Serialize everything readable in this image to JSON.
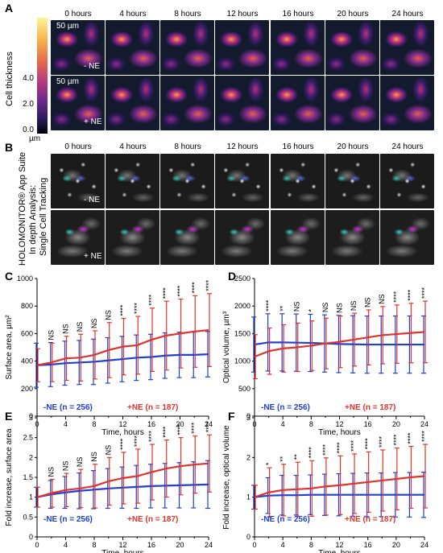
{
  "panels": {
    "A": {
      "letter": "A",
      "timepoints": [
        "0 hours",
        "4 hours",
        "8 hours",
        "12 hours",
        "16 hours",
        "20 hours",
        "24 hours"
      ],
      "ylabel": "Cell thickness",
      "colorbar_ticks": [
        "4.0",
        "2.0",
        "0.0"
      ],
      "colorbar_unit": "µm",
      "scale_label": "50 µm",
      "rows": [
        "- NE",
        "+ NE"
      ]
    },
    "B": {
      "letter": "B",
      "timepoints": [
        "0 hours",
        "4 hours",
        "8 hours",
        "12 hours",
        "16 hours",
        "20 hours",
        "24 hours"
      ],
      "ylabel_lines": [
        "HOLOMONITOR® App Suite",
        "In depth Analysis:",
        "Single Cell Tracking"
      ],
      "rows": [
        "- NE",
        "+ NE"
      ]
    }
  },
  "chart_data": [
    {
      "panel": "C",
      "type": "line",
      "xlabel": "Time, hours",
      "ylabel": "Surface area, µm²",
      "xlim": [
        0,
        24
      ],
      "ylim": [
        0,
        1000
      ],
      "xticks": [
        "0",
        "4",
        "8",
        "12",
        "16",
        "20",
        "24"
      ],
      "yticks": [
        "0",
        "200",
        "400",
        "600",
        "800",
        "1000"
      ],
      "x": [
        0,
        2,
        4,
        6,
        8,
        10,
        12,
        14,
        16,
        18,
        20,
        22,
        24
      ],
      "series": [
        {
          "name": "-NE (n = 256)",
          "color": "#1f3fd6",
          "values": [
            370,
            375,
            385,
            390,
            395,
            405,
            415,
            425,
            430,
            440,
            445,
            445,
            450
          ],
          "err": [
            160,
            160,
            160,
            160,
            165,
            165,
            165,
            165,
            165,
            165,
            165,
            165,
            165
          ]
        },
        {
          "name": "+NE (n = 187)",
          "color": "#e0342b",
          "values": [
            370,
            390,
            420,
            425,
            445,
            480,
            505,
            515,
            555,
            585,
            600,
            615,
            625
          ],
          "err": [
            120,
            140,
            160,
            170,
            175,
            200,
            205,
            210,
            230,
            250,
            250,
            260,
            265
          ]
        }
      ],
      "significance": [
        "NS",
        "NS",
        "NS",
        "NS",
        "NS",
        "****",
        "****",
        "****",
        "****",
        "****",
        "****",
        "****"
      ],
      "legend": [
        "-NE (n = 256)",
        "+NE (n = 187)"
      ]
    },
    {
      "panel": "D",
      "type": "line",
      "xlabel": "Time, hours",
      "ylabel": "Optical volume, µm³",
      "xlim": [
        0,
        24
      ],
      "ylim": [
        0,
        2500
      ],
      "xticks": [
        "0",
        "4",
        "8",
        "12",
        "16",
        "20",
        "24"
      ],
      "yticks": [
        "0",
        "500",
        "1000",
        "1500",
        "2000",
        "2500"
      ],
      "x": [
        0,
        2,
        4,
        6,
        8,
        10,
        12,
        14,
        16,
        18,
        20,
        22,
        24
      ],
      "series": [
        {
          "name": "-NE (n = 256)",
          "color": "#1f3fd6",
          "values": [
            1300,
            1340,
            1340,
            1335,
            1330,
            1320,
            1310,
            1305,
            1300,
            1300,
            1300,
            1300,
            1300
          ],
          "err": [
            500,
            520,
            520,
            520,
            520,
            520,
            520,
            520,
            520,
            520,
            520,
            520,
            520
          ]
        },
        {
          "name": "+NE (n = 187)",
          "color": "#e0342b",
          "values": [
            1080,
            1180,
            1230,
            1250,
            1280,
            1320,
            1350,
            1390,
            1430,
            1470,
            1490,
            1510,
            1530
          ],
          "err": [
            400,
            420,
            430,
            440,
            450,
            460,
            470,
            480,
            500,
            520,
            530,
            540,
            560
          ]
        }
      ],
      "significance": [
        "****",
        "**",
        "NS",
        "*",
        "NS",
        "NS",
        "NS",
        "NS",
        "NS",
        "****",
        "****",
        "****"
      ],
      "legend": [
        "-NE (n = 256)",
        "+NE (n = 187)"
      ]
    },
    {
      "panel": "E",
      "type": "line",
      "xlabel": "Time, hours",
      "ylabel": "Fold increase, surface area",
      "xlim": [
        0,
        24
      ],
      "ylim": [
        0,
        3
      ],
      "xticks": [
        "0",
        "4",
        "8",
        "12",
        "16",
        "20",
        "24"
      ],
      "yticks": [
        "0",
        "0.5",
        "1",
        "1.5",
        "2",
        "2.5",
        "3"
      ],
      "x": [
        0,
        2,
        4,
        6,
        8,
        10,
        12,
        14,
        16,
        18,
        20,
        22,
        24
      ],
      "series": [
        {
          "name": "-NE (n = 256)",
          "color": "#1f3fd6",
          "values": [
            1.0,
            1.07,
            1.12,
            1.16,
            1.19,
            1.22,
            1.24,
            1.26,
            1.28,
            1.29,
            1.3,
            1.31,
            1.32
          ],
          "err": [
            0.25,
            0.35,
            0.4,
            0.45,
            0.48,
            0.5,
            0.52,
            0.54,
            0.55,
            0.56,
            0.57,
            0.58,
            0.6
          ]
        },
        {
          "name": "+NE (n = 187)",
          "color": "#e0342b",
          "values": [
            1.0,
            1.1,
            1.18,
            1.22,
            1.28,
            1.4,
            1.48,
            1.53,
            1.63,
            1.72,
            1.78,
            1.82,
            1.85
          ],
          "err": [
            0.25,
            0.35,
            0.42,
            0.48,
            0.55,
            0.6,
            0.65,
            0.68,
            0.7,
            0.72,
            0.72,
            0.72,
            0.72
          ]
        }
      ],
      "significance": [
        "NS",
        "NS",
        "NS",
        "NS",
        "NS",
        "****",
        "****",
        "****",
        "****",
        "****",
        "****",
        "****"
      ],
      "legend": [
        "-NE (n = 256)",
        "+NE (n = 187)"
      ]
    },
    {
      "panel": "F",
      "type": "line",
      "xlabel": "Time, hours",
      "ylabel": "Fold increase, optical volume",
      "xlim": [
        0,
        24
      ],
      "ylim": [
        0,
        3
      ],
      "xticks": [
        "0",
        "4",
        "8",
        "12",
        "16",
        "20",
        "24"
      ],
      "yticks": [
        "0",
        "1",
        "2",
        "3"
      ],
      "x": [
        0,
        2,
        4,
        6,
        8,
        10,
        12,
        14,
        16,
        18,
        20,
        22,
        24
      ],
      "series": [
        {
          "name": "-NE (n = 256)",
          "color": "#1f3fd6",
          "values": [
            1.0,
            1.04,
            1.05,
            1.05,
            1.06,
            1.06,
            1.06,
            1.06,
            1.06,
            1.06,
            1.06,
            1.06,
            1.06
          ],
          "err": [
            0.3,
            0.45,
            0.5,
            0.5,
            0.5,
            0.52,
            0.53,
            0.54,
            0.55,
            0.55,
            0.56,
            0.56,
            0.57
          ]
        },
        {
          "name": "+NE (n = 187)",
          "color": "#e0342b",
          "values": [
            1.0,
            1.12,
            1.18,
            1.2,
            1.22,
            1.27,
            1.3,
            1.34,
            1.38,
            1.42,
            1.46,
            1.5,
            1.53
          ],
          "err": [
            0.3,
            0.62,
            0.65,
            0.68,
            0.7,
            0.72,
            0.74,
            0.75,
            0.76,
            0.77,
            0.78,
            0.78,
            0.8
          ]
        }
      ],
      "significance": [
        "*",
        "**",
        "**",
        "****",
        "****",
        "****",
        "****",
        "****",
        "****",
        "****",
        "****",
        "****"
      ],
      "legend": [
        "-NE (n = 256)",
        "+NE (n = 187)"
      ]
    }
  ]
}
